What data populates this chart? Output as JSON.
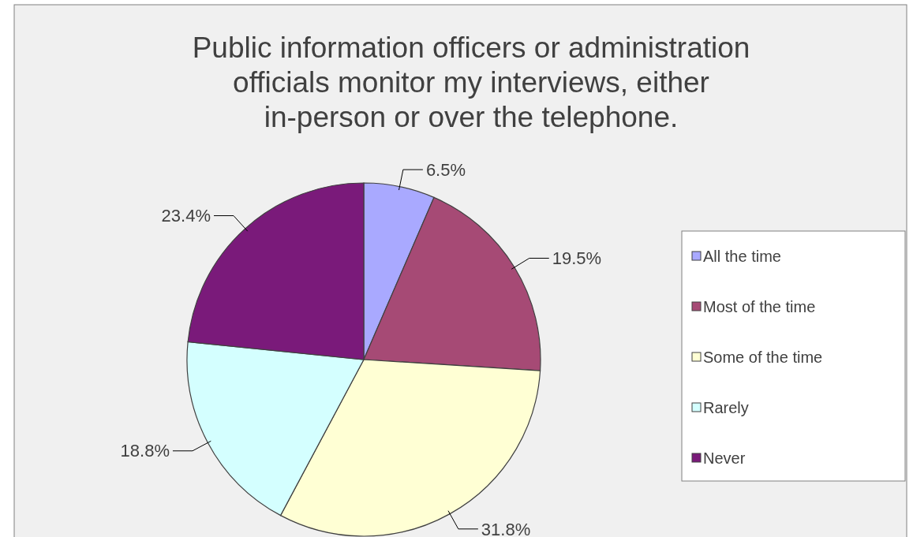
{
  "chart_data": {
    "type": "pie",
    "title": "Public information officers or administration officials monitor my interviews, either in-person or over the telephone.",
    "categories": [
      "All the time",
      "Most of the time",
      "Some of the time",
      "Rarely",
      "Never"
    ],
    "values": [
      6.5,
      19.5,
      31.8,
      18.8,
      23.4
    ],
    "value_labels": [
      "6.5%",
      "19.5%",
      "31.8%",
      "18.8%",
      "23.4%"
    ],
    "colors": [
      "#a9a9ff",
      "#a64a75",
      "#ffffd4",
      "#d4ffff",
      "#7a1a7a"
    ],
    "legend": "right"
  }
}
